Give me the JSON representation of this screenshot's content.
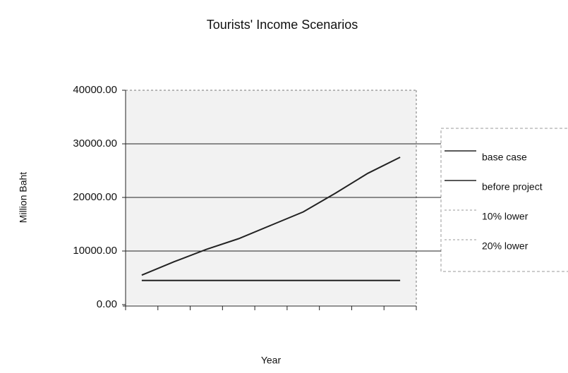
{
  "chart_data": {
    "type": "line",
    "title": "Tourists' Income Scenarios",
    "y_label": "Million Baht",
    "x_label": "Year",
    "categories": [
      null,
      null,
      null,
      null,
      null,
      null,
      null,
      null,
      null
    ],
    "series": [
      {
        "name": "base case",
        "color": "#222222",
        "values": [
          5500,
          8000,
          10300,
          12300,
          14800,
          17300,
          20800,
          24500,
          27500
        ]
      },
      {
        "name": "before project",
        "color": "#222222",
        "values": [
          4500,
          4500,
          4500,
          4500,
          4500,
          4500,
          4500,
          4500,
          4500
        ]
      },
      {
        "name": "10% lower",
        "color": "#bbbbbb",
        "values": [
          null,
          null,
          null,
          null,
          null,
          null,
          null,
          null,
          null
        ]
      },
      {
        "name": "20% lower",
        "color": "#bbbbbb",
        "values": [
          null,
          null,
          null,
          null,
          null,
          null,
          null,
          null,
          null
        ]
      }
    ],
    "ylim": [
      0,
      40000
    ],
    "yticks": [
      {
        "value": 0,
        "label": "0.00"
      },
      {
        "value": 10000,
        "label": "10000.00"
      },
      {
        "value": 20000,
        "label": "20000.00"
      },
      {
        "value": 30000,
        "label": "30000.00"
      },
      {
        "value": 40000,
        "label": "40000.00"
      }
    ],
    "grid": true
  }
}
